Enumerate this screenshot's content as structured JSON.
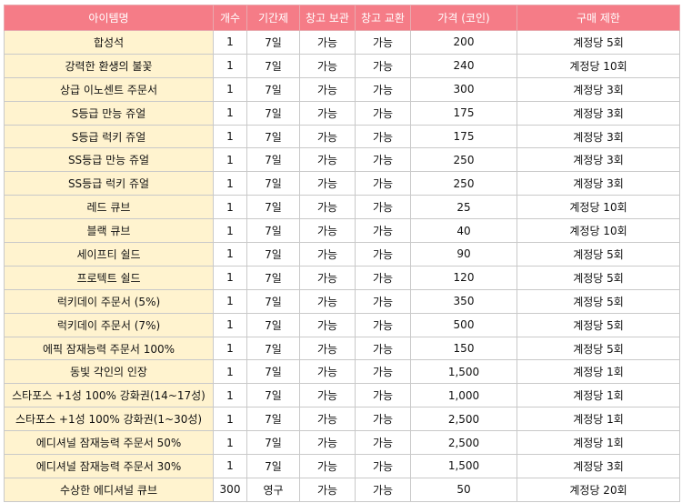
{
  "columns": [
    "아이템명",
    "개수",
    "기간제",
    "창고 보관",
    "창고 교환",
    "가격 (코인)",
    "구매 제한"
  ],
  "rows": [
    [
      "합성석",
      "1",
      "7일",
      "가능",
      "가능",
      "200",
      "계정당 5회"
    ],
    [
      "강력한 환생의 불꽃",
      "1",
      "7일",
      "가능",
      "가능",
      "240",
      "계정당 10회"
    ],
    [
      "상급 이노센트 주문서",
      "1",
      "7일",
      "가능",
      "가능",
      "300",
      "계정당 3회"
    ],
    [
      "S등급 만능 쥬얼",
      "1",
      "7일",
      "가능",
      "가능",
      "175",
      "계정당 3회"
    ],
    [
      "S등급 럭키 쥬얼",
      "1",
      "7일",
      "가능",
      "가능",
      "175",
      "계정당 3회"
    ],
    [
      "SS등급 만능 쥬얼",
      "1",
      "7일",
      "가능",
      "가능",
      "250",
      "계정당 3회"
    ],
    [
      "SS등급 럭키 쥬얼",
      "1",
      "7일",
      "가능",
      "가능",
      "250",
      "계정당 3회"
    ],
    [
      "레드 큐브",
      "1",
      "7일",
      "가능",
      "가능",
      "25",
      "계정당 10회"
    ],
    [
      "블랙 큐브",
      "1",
      "7일",
      "가능",
      "가능",
      "40",
      "계정당 10회"
    ],
    [
      "세이프티 쉴드",
      "1",
      "7일",
      "가능",
      "가능",
      "90",
      "계정당 5회"
    ],
    [
      "프로텍트 쉴드",
      "1",
      "7일",
      "가능",
      "가능",
      "120",
      "계정당 5회"
    ],
    [
      "럭키데이 주문서 (5%)",
      "1",
      "7일",
      "가능",
      "가능",
      "350",
      "계정당 5회"
    ],
    [
      "럭키데이 주문서 (7%)",
      "1",
      "7일",
      "가능",
      "가능",
      "500",
      "계정당 5회"
    ],
    [
      "에픽 잠재능력 주문서 100%",
      "1",
      "7일",
      "가능",
      "가능",
      "150",
      "계정당 5회"
    ],
    [
      "동빛 각인의 인장",
      "1",
      "7일",
      "가능",
      "가능",
      "1,500",
      "계정당 1회"
    ],
    [
      "스타포스 +1성 100% 강화권(14~17성)",
      "1",
      "7일",
      "가능",
      "가능",
      "1,000",
      "계정당 1회"
    ],
    [
      "스타포스 +1성 100% 강화권(1~30성)",
      "1",
      "7일",
      "가능",
      "가능",
      "2,500",
      "계정당 1회"
    ],
    [
      "에디셔널 잠재능력 주문서 50%",
      "1",
      "7일",
      "가능",
      "가능",
      "2,500",
      "계정당 1회"
    ],
    [
      "에디셔널 잠재능력 주문서 30%",
      "1",
      "7일",
      "가능",
      "가능",
      "1,500",
      "계정당 3회"
    ],
    [
      "수상한 에디셔널 큐브",
      "300",
      "영구",
      "가능",
      "가능",
      "50",
      "계정당 20회"
    ]
  ]
}
